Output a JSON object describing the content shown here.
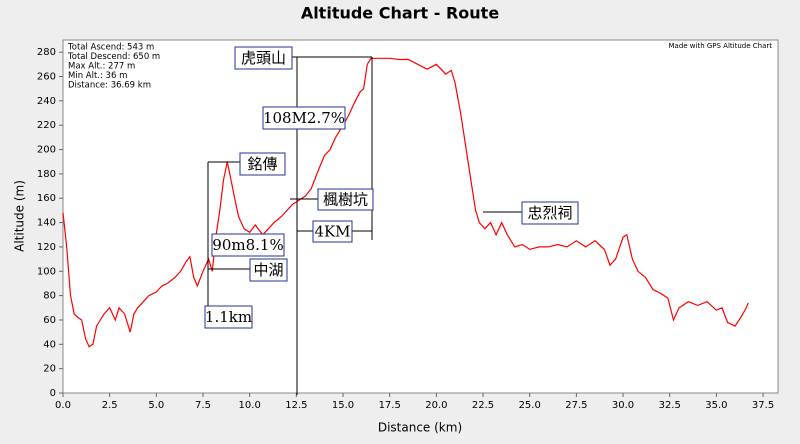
{
  "chart_data": {
    "type": "line",
    "title": "Altitude Chart - Route",
    "x_label": "Distance (km)",
    "y_label": "Altitude (m)",
    "stats": [
      "Total Ascend: 543 m",
      "Total Descend: 650 m",
      "Max Alt.: 277 m",
      "Min Alt.: 36 m",
      "Distance: 36.69 km"
    ],
    "credit": "Made with GPS Altitude Chart",
    "annotations": [
      "虎頭山",
      "108M2.7%",
      "銘傳",
      "楓樹坑",
      "4KM",
      "90m8.1%",
      "中湖",
      "1.1km",
      "忠烈祠"
    ],
    "color": "#ff0000",
    "x": [
      0,
      0.2,
      0.4,
      0.6,
      0.8,
      1.0,
      1.2,
      1.4,
      1.6,
      1.8,
      2.0,
      2.2,
      2.5,
      2.8,
      3.0,
      3.3,
      3.6,
      3.8,
      4.0,
      4.3,
      4.6,
      5.0,
      5.3,
      5.6,
      6.0,
      6.3,
      6.6,
      6.8,
      7.0,
      7.2,
      7.5,
      7.8,
      8.0,
      8.2,
      8.4,
      8.6,
      8.8,
      9.0,
      9.2,
      9.4,
      9.7,
      10.0,
      10.3,
      10.7,
      11.0,
      11.3,
      11.7,
      12.0,
      12.3,
      12.6,
      13.0,
      13.3,
      13.6,
      14.0,
      14.3,
      14.6,
      15.0,
      15.3,
      15.6,
      15.9,
      16.1,
      16.3,
      16.5,
      17.0,
      17.5,
      18.0,
      18.5,
      19.0,
      19.5,
      20.0,
      20.5,
      20.8,
      21.0,
      21.3,
      21.6,
      21.9,
      22.1,
      22.3,
      22.6,
      22.9,
      23.2,
      23.5,
      23.8,
      24.2,
      24.6,
      25.0,
      25.5,
      26.0,
      26.5,
      27.0,
      27.5,
      28.0,
      28.5,
      29.0,
      29.3,
      29.6,
      30.0,
      30.2,
      30.5,
      30.8,
      31.2,
      31.6,
      32.0,
      32.4,
      32.7,
      33.0,
      33.5,
      34.0,
      34.5,
      35.0,
      35.3,
      35.6,
      36.0,
      36.3,
      36.6,
      36.7
    ],
    "values": [
      148,
      120,
      80,
      65,
      62,
      60,
      45,
      38,
      40,
      55,
      60,
      65,
      70,
      60,
      70,
      65,
      50,
      65,
      70,
      75,
      80,
      83,
      88,
      90,
      95,
      100,
      108,
      112,
      95,
      88,
      100,
      110,
      100,
      130,
      150,
      175,
      190,
      175,
      160,
      145,
      135,
      132,
      138,
      130,
      135,
      140,
      145,
      150,
      155,
      158,
      162,
      168,
      180,
      195,
      200,
      210,
      220,
      228,
      238,
      247,
      250,
      270,
      275,
      275,
      275,
      274,
      274,
      270,
      266,
      270,
      262,
      265,
      255,
      230,
      200,
      170,
      150,
      140,
      135,
      140,
      130,
      140,
      130,
      120,
      122,
      118,
      120,
      120,
      122,
      120,
      125,
      120,
      125,
      118,
      105,
      110,
      128,
      130,
      110,
      100,
      95,
      85,
      82,
      78,
      60,
      70,
      75,
      72,
      75,
      68,
      70,
      58,
      55,
      62,
      70,
      74
    ],
    "xlim": [
      0,
      38.3
    ],
    "ylim": [
      0,
      290
    ],
    "xticks": [
      {
        "value": 0,
        "label": "0.0"
      },
      2.5,
      {
        "value": 5,
        "label": "5.0"
      },
      7.5,
      {
        "value": 10,
        "label": "10.0"
      },
      12.5,
      {
        "value": 15,
        "label": "15.0"
      },
      17.5,
      {
        "value": 20,
        "label": "20.0"
      },
      22.5,
      {
        "value": 25,
        "label": "25.0"
      },
      27.5,
      {
        "value": 30,
        "label": "30.0"
      },
      32.5,
      {
        "value": 35,
        "label": "35.0"
      },
      37.5
    ],
    "yticks": [
      0,
      20,
      40,
      60,
      80,
      100,
      120,
      140,
      160,
      180,
      200,
      220,
      240,
      260,
      280
    ]
  }
}
